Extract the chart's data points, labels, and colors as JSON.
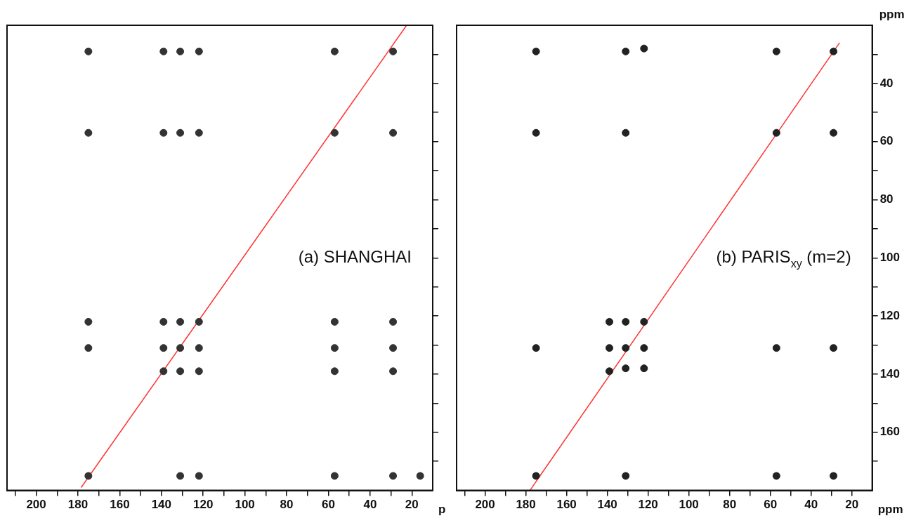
{
  "chart_data": [
    {
      "type": "scatter",
      "annotations": [
        "(a) SHANGHAI"
      ],
      "xlabel": "p",
      "xlim": [
        214,
        10
      ],
      "ylim": [
        180,
        20
      ],
      "xticks": [
        {
          "value": 210,
          "label": null
        },
        200,
        {
          "value": 190,
          "label": null
        },
        180,
        {
          "value": 170,
          "label": null
        },
        160,
        {
          "value": 150,
          "label": null
        },
        140,
        {
          "value": 130,
          "label": null
        },
        120,
        {
          "value": 110,
          "label": null
        },
        100,
        {
          "value": 90,
          "label": null
        },
        80,
        {
          "value": 70,
          "label": null
        },
        60,
        {
          "value": 50,
          "label": null
        },
        40,
        {
          "value": 30,
          "label": null
        },
        20
      ],
      "yticks": [
        {
          "value": 30,
          "label": null
        },
        {
          "value": 40,
          "label": null
        },
        {
          "value": 50,
          "label": null
        },
        {
          "value": 60,
          "label": null
        },
        {
          "value": 70,
          "label": null
        },
        {
          "value": 80,
          "label": null
        },
        {
          "value": 90,
          "label": null
        },
        {
          "value": 100,
          "label": null
        },
        {
          "value": 110,
          "label": null
        },
        {
          "value": 120,
          "label": null
        },
        {
          "value": 130,
          "label": null
        },
        {
          "value": 140,
          "label": null
        },
        {
          "value": 150,
          "label": null
        },
        {
          "value": 160,
          "label": null
        },
        {
          "value": 170,
          "label": null
        }
      ],
      "tick_labels": "x",
      "grid": false,
      "legend": false,
      "series": [
        {
          "type": "scatter",
          "marker": "circle",
          "color": "#333333",
          "x": [
            175,
            139,
            131,
            122,
            57,
            29,
            175,
            139,
            131,
            122,
            57,
            29,
            175,
            139,
            131,
            122,
            57,
            29,
            175,
            139,
            131,
            122,
            57,
            29,
            139,
            131,
            122,
            57,
            29,
            175,
            131,
            122,
            57,
            29,
            16
          ],
          "values": [
            29,
            29,
            29,
            29,
            29,
            29,
            57,
            57,
            57,
            57,
            57,
            57,
            122,
            122,
            122,
            122,
            122,
            122,
            131,
            131,
            131,
            131,
            131,
            131,
            139,
            139,
            139,
            139,
            139,
            175,
            175,
            175,
            175,
            175,
            175
          ]
        },
        {
          "type": "line",
          "marker": "none",
          "color": "#ff3333",
          "x": [
            178.5,
            22.5
          ],
          "values": [
            179,
            20
          ]
        }
      ]
    },
    {
      "type": "scatter",
      "annotations": [
        "(b) PARIS$_{xy}$ (m=2)"
      ],
      "xlabel": "ppm",
      "ylabel": "ppm",
      "xlim": [
        214,
        10
      ],
      "ylim": [
        180,
        20
      ],
      "xticks": [
        {
          "value": 210,
          "label": null
        },
        200,
        {
          "value": 190,
          "label": null
        },
        180,
        {
          "value": 170,
          "label": null
        },
        160,
        {
          "value": 150,
          "label": null
        },
        140,
        {
          "value": 130,
          "label": null
        },
        120,
        {
          "value": 110,
          "label": null
        },
        100,
        {
          "value": 90,
          "label": null
        },
        80,
        {
          "value": 70,
          "label": null
        },
        60,
        {
          "value": 50,
          "label": null
        },
        40,
        {
          "value": 30,
          "label": null
        },
        20
      ],
      "yticks": [
        {
          "value": 30,
          "label": null
        },
        40,
        {
          "value": 50,
          "label": null
        },
        60,
        {
          "value": 70,
          "label": null
        },
        80,
        {
          "value": 90,
          "label": null
        },
        100,
        {
          "value": 110,
          "label": null
        },
        120,
        {
          "value": 130,
          "label": null
        },
        140,
        {
          "value": 150,
          "label": null
        },
        160,
        {
          "value": 170,
          "label": null
        }
      ],
      "grid": false,
      "legend": false,
      "series": [
        {
          "type": "scatter",
          "marker": "circle",
          "color": "#222222",
          "x": [
            175,
            131,
            122,
            57,
            29,
            175,
            131,
            57,
            29,
            139,
            131,
            122,
            175,
            139,
            131,
            122,
            57,
            29,
            131,
            122,
            139,
            175,
            131,
            57,
            29
          ],
          "values": [
            29,
            29,
            28,
            29,
            29,
            57,
            57,
            57,
            57,
            122,
            122,
            122,
            131,
            131,
            131,
            131,
            131,
            131,
            138,
            138,
            139,
            175,
            175,
            175,
            175
          ]
        },
        {
          "type": "line",
          "marker": "none",
          "color": "#ff3333",
          "x": [
            178,
            26
          ],
          "values": [
            180,
            26
          ]
        }
      ]
    }
  ]
}
